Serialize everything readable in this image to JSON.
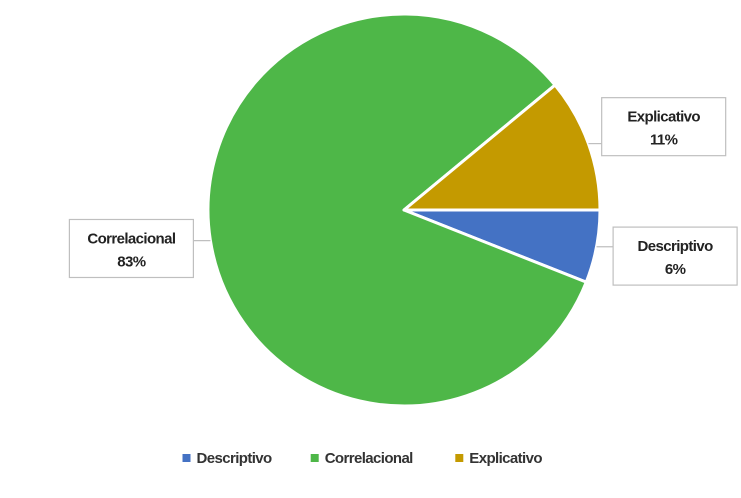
{
  "chart_data": {
    "type": "pie",
    "title": "",
    "slices": [
      {
        "label": "Descriptivo",
        "value": 6,
        "display": "6%",
        "color": "#4472C4"
      },
      {
        "label": "Correlacional",
        "value": 83,
        "display": "83%",
        "color": "#4EB748"
      },
      {
        "label": "Explicativo",
        "value": 11,
        "display": "11%",
        "color": "#C49A00"
      }
    ],
    "legend": {
      "position": "bottom",
      "items": [
        "Descriptivo",
        "Correlacional",
        "Explicativo"
      ]
    }
  }
}
